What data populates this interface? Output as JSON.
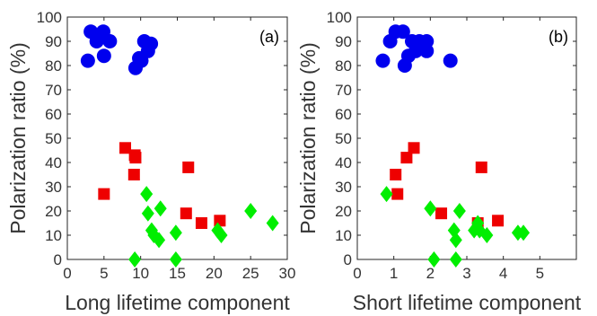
{
  "chart_data": [
    {
      "type": "scatter",
      "panel_label": "(a)",
      "xlabel": "Long lifetime component",
      "ylabel": "Polarization ratio (%)",
      "xlim": [
        0,
        30
      ],
      "ylim": [
        0,
        100
      ],
      "x_ticks": [
        "0",
        "5",
        "10",
        "15",
        "20",
        "25",
        "30"
      ],
      "y_ticks": [
        "0",
        "10",
        "20",
        "30",
        "40",
        "50",
        "60",
        "70",
        "80",
        "90",
        "100"
      ],
      "grid": false,
      "series": [
        {
          "marker": "circle",
          "color": "#0000ee",
          "points": [
            [
              3.2,
              94
            ],
            [
              4.9,
              94
            ],
            [
              5.8,
              90
            ],
            [
              4.0,
              90
            ],
            [
              2.8,
              82
            ],
            [
              5.0,
              84
            ],
            [
              9.3,
              79
            ],
            [
              10.1,
              82
            ],
            [
              11.0,
              86
            ],
            [
              10.5,
              90
            ],
            [
              11.4,
              89
            ],
            [
              9.8,
              83
            ]
          ]
        },
        {
          "marker": "square",
          "color": "#ee0000",
          "points": [
            [
              7.9,
              46
            ],
            [
              9.2,
              43
            ],
            [
              9.3,
              42
            ],
            [
              9.1,
              35
            ],
            [
              5.0,
              27
            ],
            [
              16.5,
              38
            ],
            [
              16.2,
              19
            ],
            [
              18.3,
              15
            ],
            [
              20.8,
              16
            ]
          ]
        },
        {
          "marker": "diamond",
          "color": "#00ee00",
          "points": [
            [
              10.8,
              27
            ],
            [
              12.7,
              21
            ],
            [
              11.0,
              19
            ],
            [
              11.5,
              12
            ],
            [
              11.8,
              10
            ],
            [
              12.5,
              8
            ],
            [
              14.8,
              11
            ],
            [
              20.5,
              12
            ],
            [
              21.0,
              10
            ],
            [
              25.0,
              20
            ],
            [
              28.0,
              15
            ],
            [
              9.2,
              0
            ],
            [
              14.8,
              0
            ]
          ]
        }
      ]
    },
    {
      "type": "scatter",
      "panel_label": "(b)",
      "xlabel": "Short lifetime component",
      "ylabel": "Polarization ratio (%)",
      "xlim": [
        0,
        6
      ],
      "ylim": [
        0,
        100
      ],
      "x_ticks": [
        "0",
        "1",
        "2",
        "3",
        "4",
        "5"
      ],
      "y_ticks": [
        "0",
        "10",
        "20",
        "30",
        "40",
        "50",
        "60",
        "70",
        "80",
        "90",
        "100"
      ],
      "grid": false,
      "series": [
        {
          "marker": "circle",
          "color": "#0000ee",
          "points": [
            [
              1.05,
              94
            ],
            [
              1.25,
              94
            ],
            [
              0.9,
              90
            ],
            [
              0.7,
              82
            ],
            [
              1.5,
              90
            ],
            [
              1.7,
              90
            ],
            [
              1.9,
              90
            ],
            [
              1.6,
              86
            ],
            [
              1.4,
              84
            ],
            [
              1.3,
              80
            ],
            [
              1.9,
              86
            ],
            [
              2.55,
              82
            ]
          ]
        },
        {
          "marker": "square",
          "color": "#ee0000",
          "points": [
            [
              1.35,
              42
            ],
            [
              1.55,
              46
            ],
            [
              1.05,
              35
            ],
            [
              1.1,
              27
            ],
            [
              3.4,
              38
            ],
            [
              2.3,
              19
            ],
            [
              3.3,
              15
            ],
            [
              3.85,
              16
            ]
          ]
        },
        {
          "marker": "diamond",
          "color": "#00ee00",
          "points": [
            [
              0.8,
              27
            ],
            [
              2.0,
              21
            ],
            [
              2.8,
              20
            ],
            [
              2.65,
              12
            ],
            [
              2.7,
              8
            ],
            [
              3.2,
              12
            ],
            [
              3.3,
              15
            ],
            [
              3.35,
              12
            ],
            [
              3.55,
              10
            ],
            [
              4.4,
              11
            ],
            [
              4.55,
              11
            ],
            [
              2.1,
              0
            ],
            [
              2.7,
              0
            ]
          ]
        }
      ]
    }
  ]
}
